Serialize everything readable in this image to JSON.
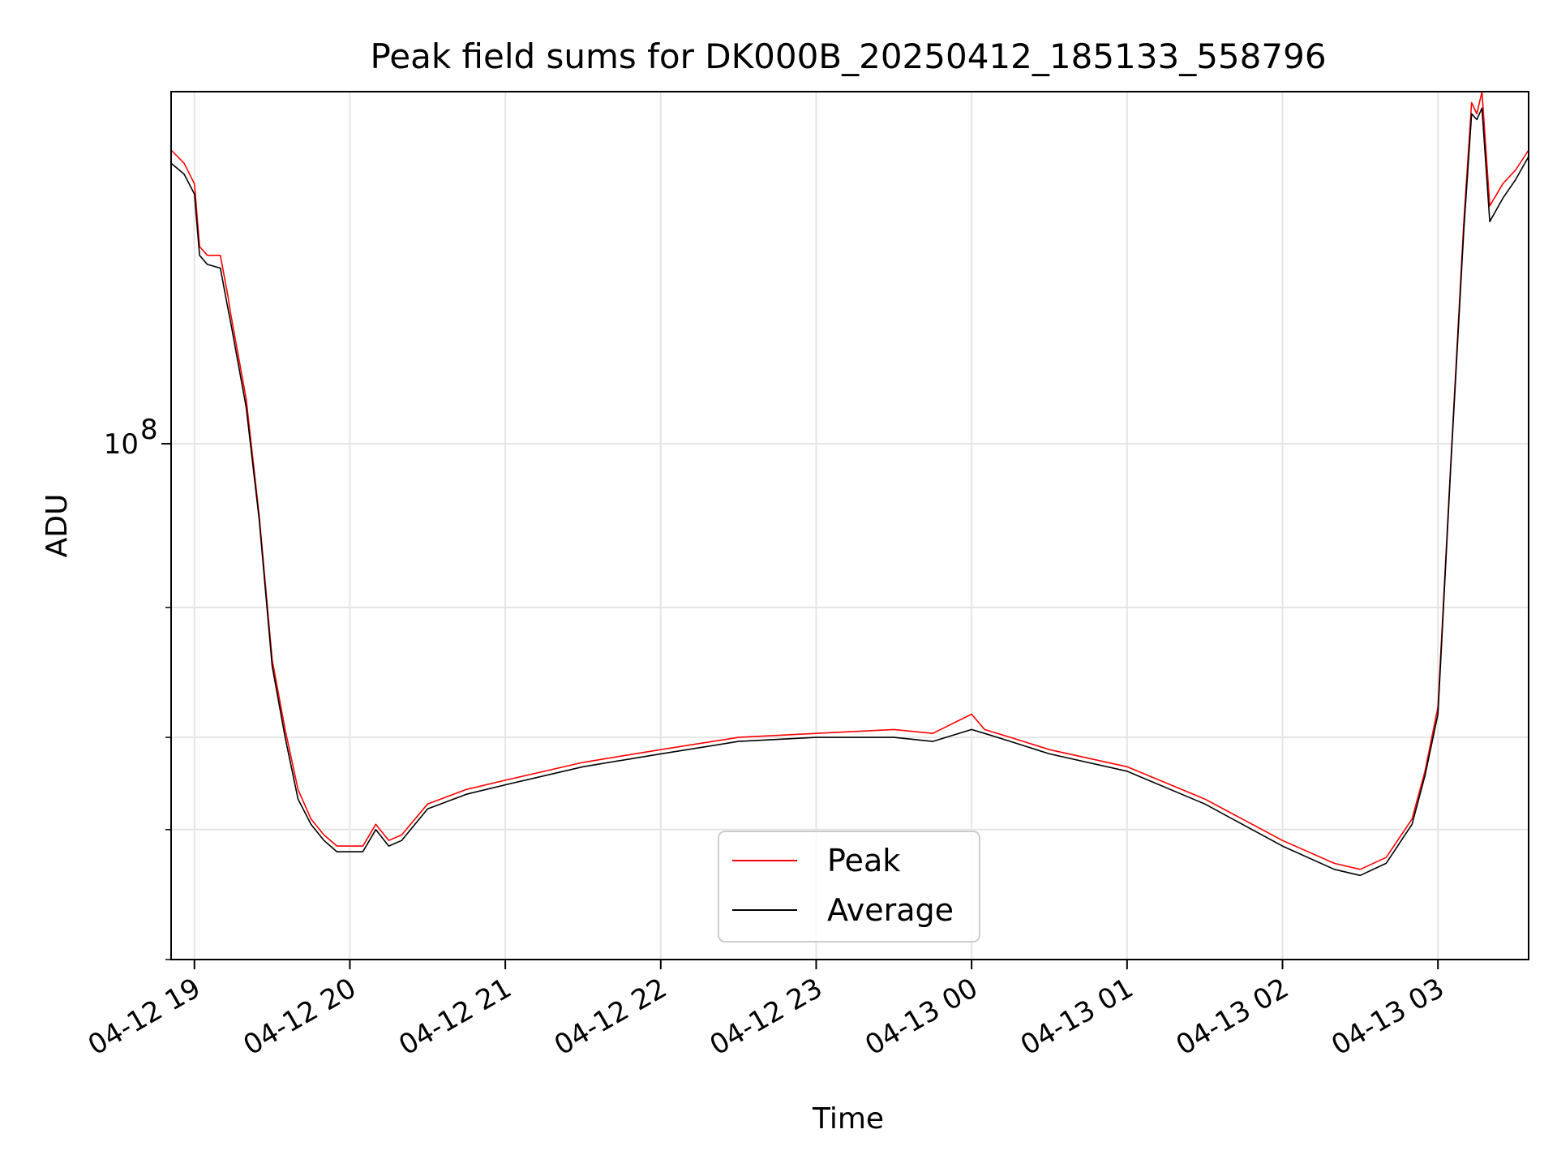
{
  "chart_data": {
    "type": "line",
    "title": "Peak field sums for DK000B_20250412_185133_558796",
    "xlabel": "Time",
    "ylabel": "ADU",
    "x_tick_labels": [
      "04-12 19",
      "04-12 20",
      "04-12 21",
      "04-12 22",
      "04-12 23",
      "04-13 00",
      "04-13 01",
      "04-13 02",
      "04-13 03"
    ],
    "y_tick_labels": [
      {
        "base": "10",
        "exp": "8"
      }
    ],
    "xlim": [
      "2025-04-12 18:51",
      "2025-04-13 03:35"
    ],
    "yscale": "log",
    "ylim": [
      20000000,
      300000000
    ],
    "y_minor_ticks": [
      20000000,
      30000000,
      40000000,
      60000000
    ],
    "grid": true,
    "legend_position": "lower center",
    "series": [
      {
        "name": "Peak",
        "color": "#ff0000",
        "x": [
          "2025-04-12 18:51",
          "2025-04-12 18:56",
          "2025-04-12 19:00",
          "2025-04-12 19:02",
          "2025-04-12 19:05",
          "2025-04-12 19:10",
          "2025-04-12 19:13",
          "2025-04-12 19:14",
          "2025-04-12 19:20",
          "2025-04-12 19:25",
          "2025-04-12 19:30",
          "2025-04-12 19:35",
          "2025-04-12 19:40",
          "2025-04-12 19:45",
          "2025-04-12 19:50",
          "2025-04-12 19:55",
          "2025-04-12 20:00",
          "2025-04-12 20:05",
          "2025-04-12 20:10",
          "2025-04-12 20:15",
          "2025-04-12 20:20",
          "2025-04-12 20:30",
          "2025-04-12 20:45",
          "2025-04-12 21:00",
          "2025-04-12 21:30",
          "2025-04-12 22:00",
          "2025-04-12 22:30",
          "2025-04-12 23:00",
          "2025-04-12 23:30",
          "2025-04-12 23:45",
          "2025-04-13 00:00",
          "2025-04-13 00:05",
          "2025-04-13 00:15",
          "2025-04-13 00:30",
          "2025-04-13 01:00",
          "2025-04-13 01:30",
          "2025-04-13 02:00",
          "2025-04-13 02:20",
          "2025-04-13 02:30",
          "2025-04-13 02:40",
          "2025-04-13 02:50",
          "2025-04-13 02:55",
          "2025-04-13 03:00",
          "2025-04-13 03:05",
          "2025-04-13 03:10",
          "2025-04-13 03:13",
          "2025-04-13 03:15",
          "2025-04-13 03:17",
          "2025-04-13 03:20",
          "2025-04-13 03:25",
          "2025-04-13 03:30",
          "2025-04-13 03:35"
        ],
        "values": [
          250000000,
          240000000,
          225000000,
          185000000,
          180000000,
          180000000,
          158000000,
          150000000,
          115000000,
          80000000,
          51000000,
          41000000,
          34000000,
          31000000,
          29500000,
          28500000,
          28500000,
          28500000,
          30500000,
          29000000,
          29500000,
          32500000,
          34000000,
          35000000,
          37000000,
          38500000,
          40000000,
          40500000,
          41000000,
          40500000,
          43000000,
          41000000,
          40000000,
          38500000,
          36500000,
          33000000,
          29000000,
          27000000,
          26500000,
          27500000,
          31000000,
          36000000,
          44000000,
          95000000,
          200000000,
          290000000,
          280000000,
          300000000,
          210000000,
          225000000,
          235000000,
          250000000
        ]
      },
      {
        "name": "Average",
        "color": "#000000",
        "x": [
          "2025-04-12 18:51",
          "2025-04-12 18:56",
          "2025-04-12 19:00",
          "2025-04-12 19:02",
          "2025-04-12 19:05",
          "2025-04-12 19:10",
          "2025-04-12 19:13",
          "2025-04-12 19:14",
          "2025-04-12 19:20",
          "2025-04-12 19:25",
          "2025-04-12 19:30",
          "2025-04-12 19:35",
          "2025-04-12 19:40",
          "2025-04-12 19:45",
          "2025-04-12 19:50",
          "2025-04-12 19:55",
          "2025-04-12 20:00",
          "2025-04-12 20:05",
          "2025-04-12 20:10",
          "2025-04-12 20:15",
          "2025-04-12 20:20",
          "2025-04-12 20:30",
          "2025-04-12 20:45",
          "2025-04-12 21:00",
          "2025-04-12 21:30",
          "2025-04-12 22:00",
          "2025-04-12 22:30",
          "2025-04-12 23:00",
          "2025-04-12 23:30",
          "2025-04-12 23:45",
          "2025-04-13 00:00",
          "2025-04-13 00:05",
          "2025-04-13 00:15",
          "2025-04-13 00:30",
          "2025-04-13 01:00",
          "2025-04-13 01:30",
          "2025-04-13 02:00",
          "2025-04-13 02:20",
          "2025-04-13 02:30",
          "2025-04-13 02:40",
          "2025-04-13 02:50",
          "2025-04-13 02:55",
          "2025-04-13 03:00",
          "2025-04-13 03:05",
          "2025-04-13 03:10",
          "2025-04-13 03:13",
          "2025-04-13 03:15",
          "2025-04-13 03:17",
          "2025-04-13 03:20",
          "2025-04-13 03:25",
          "2025-04-13 03:30",
          "2025-04-13 03:35"
        ],
        "values": [
          240000000,
          232000000,
          218000000,
          180000000,
          175000000,
          173000000,
          152000000,
          146000000,
          112000000,
          79000000,
          50000000,
          40000000,
          33000000,
          30500000,
          29000000,
          28000000,
          28000000,
          28000000,
          30000000,
          28500000,
          29000000,
          32000000,
          33500000,
          34500000,
          36500000,
          38000000,
          39500000,
          40000000,
          40000000,
          39500000,
          41000000,
          40500000,
          39500000,
          38000000,
          36000000,
          32500000,
          28500000,
          26500000,
          26000000,
          27000000,
          30500000,
          35500000,
          43000000,
          94000000,
          195000000,
          280000000,
          275000000,
          285000000,
          200000000,
          215000000,
          228000000,
          245000000
        ]
      }
    ]
  }
}
